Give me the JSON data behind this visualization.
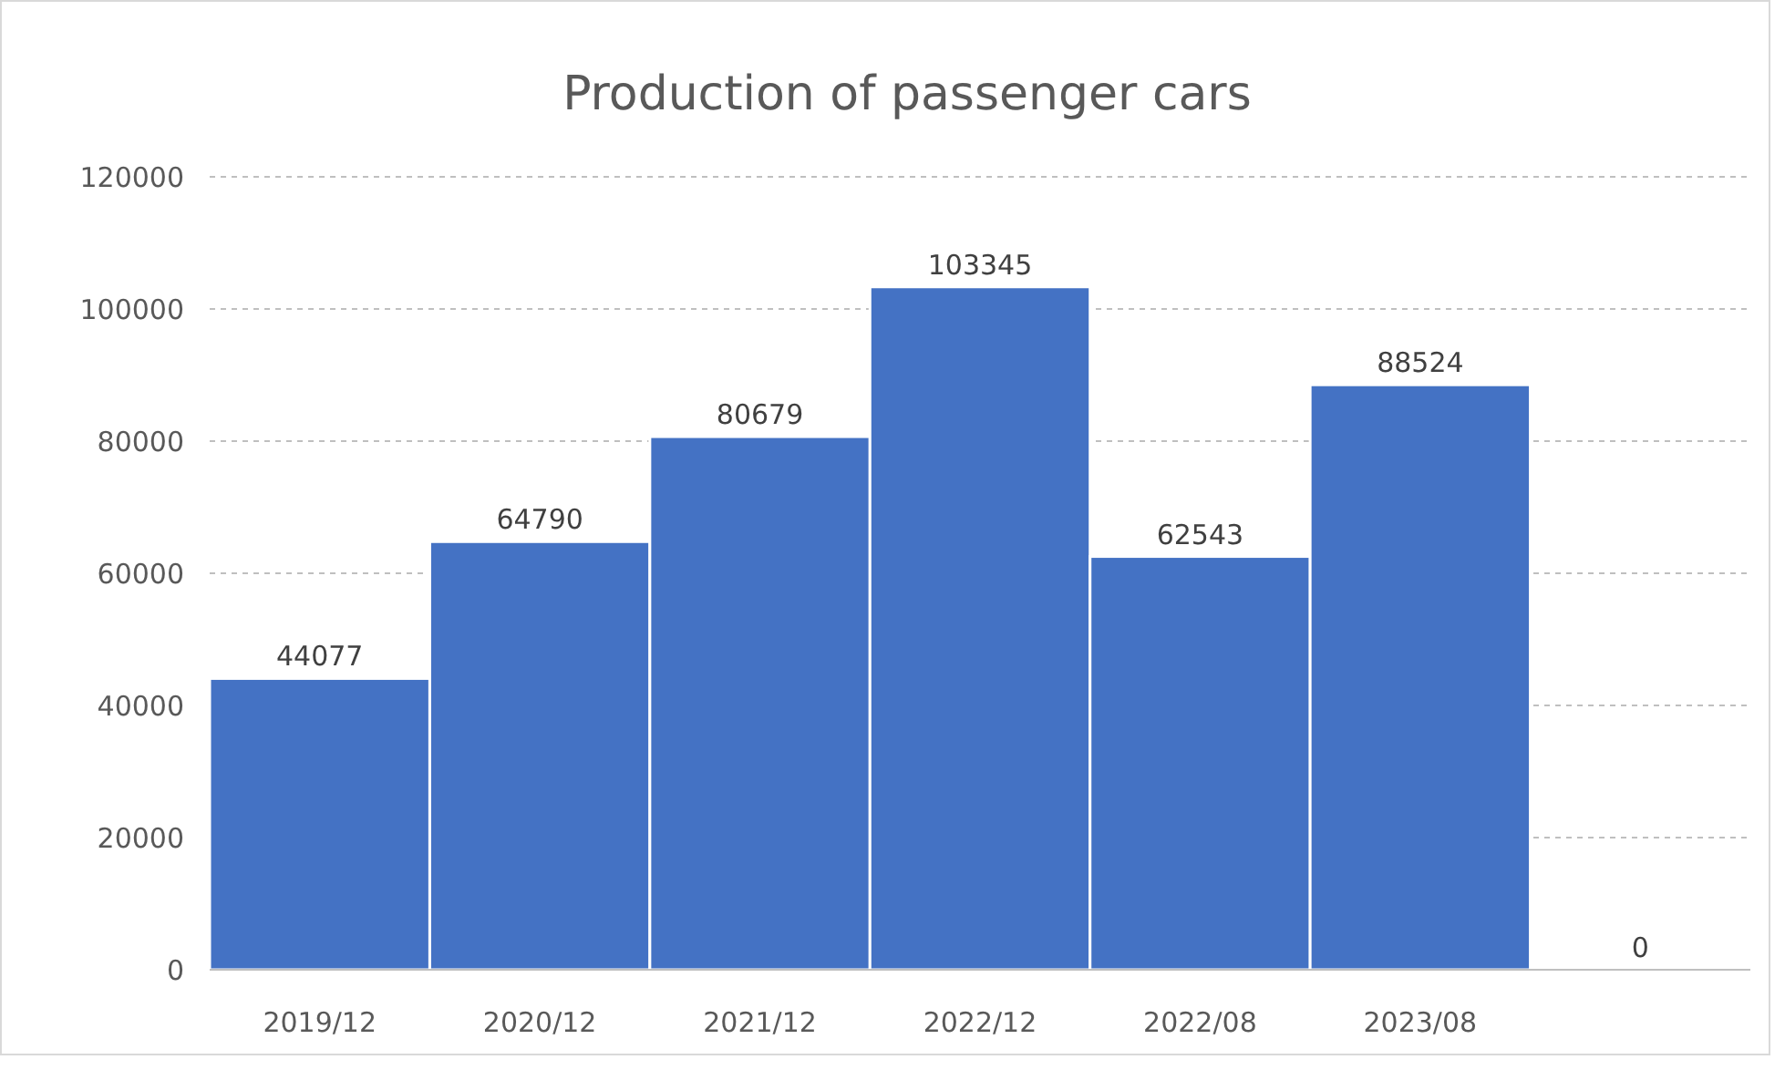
{
  "chart_data": {
    "type": "bar",
    "title": "Production of passenger cars",
    "categories": [
      "2019/12",
      "2020/12",
      "2021/12",
      "2022/12",
      "2022/08",
      "2023/08",
      null
    ],
    "values": [
      44077,
      64790,
      80679,
      103345,
      62543,
      88524,
      0
    ],
    "color": "#4472c4",
    "ylim": [
      0,
      120000
    ],
    "yticks": [
      0,
      20000,
      40000,
      60000,
      80000,
      100000,
      120000
    ],
    "grid": "y",
    "data_labels": true
  }
}
